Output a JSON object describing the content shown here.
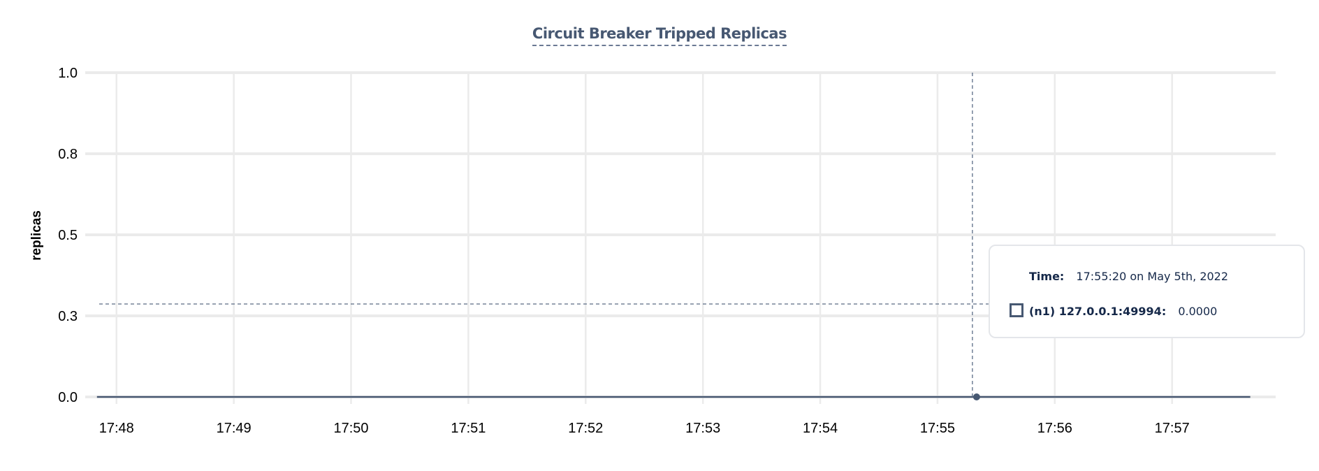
{
  "chart_data": {
    "type": "line",
    "title": "Circuit Breaker Tripped Replicas",
    "xlabel": "",
    "ylabel": "replicas",
    "x_tick_labels": [
      "17:48",
      "17:49",
      "17:50",
      "17:51",
      "17:52",
      "17:53",
      "17:54",
      "17:55",
      "17:56",
      "17:57"
    ],
    "y_tick_labels": [
      "0.0",
      "0.3",
      "0.5",
      "0.8",
      "1.0"
    ],
    "ylim": [
      0,
      1
    ],
    "xlim": [
      "17:47:44",
      "17:57:53"
    ],
    "grid": true,
    "series": [
      {
        "name": "(n1) 127.0.0.1:49994",
        "color": "#475872",
        "x": [
          "17:47:50",
          "17:50:00",
          "17:52:00",
          "17:54:00",
          "17:55:20",
          "17:57:40"
        ],
        "values": [
          0,
          0,
          0,
          0,
          0,
          0
        ]
      }
    ]
  },
  "tooltip": {
    "time_label": "Time:",
    "time_value": "17:55:20 on May 5th, 2022",
    "series_label": "(n1) 127.0.0.1:49994:",
    "series_value": "0.0000"
  },
  "hover": {
    "time": "17:55:20"
  }
}
